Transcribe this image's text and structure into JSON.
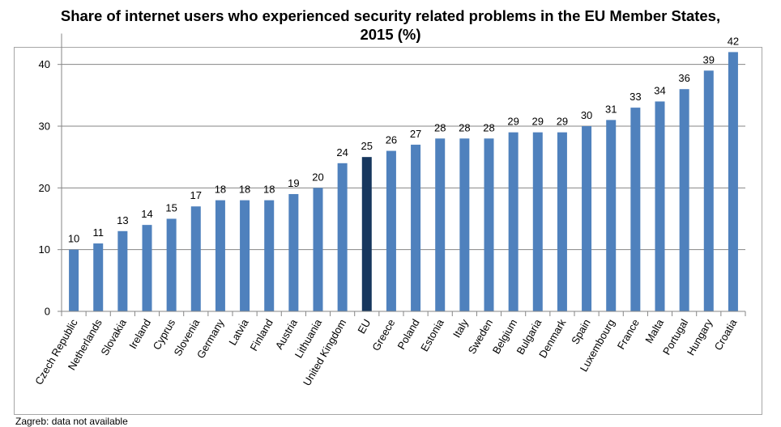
{
  "chart_data": {
    "type": "bar",
    "title_line1": "Share of internet users who experienced security related problems in the EU Member States,",
    "title_line2": "2015 (%)",
    "xlabel": "",
    "ylabel": "",
    "ylim": [
      0,
      45
    ],
    "yticks": [
      0,
      10,
      20,
      30,
      40
    ],
    "grid": true,
    "legend": "none",
    "categories": [
      "Czech Republic",
      "Netherlands",
      "Slovakia",
      "Ireland",
      "Cyprus",
      "Slovenia",
      "Germany",
      "Latvia",
      "Finland",
      "Austria",
      "Lithuania",
      "United Kingdom",
      "EU",
      "Greece",
      "Poland",
      "Estonia",
      "Italy",
      "Sweden",
      "Belgium",
      "Bulgaria",
      "Denmark",
      "Spain",
      "Luxembourg",
      "France",
      "Malta",
      "Portugal",
      "Hungary",
      "Croatia"
    ],
    "values": [
      10,
      11,
      13,
      14,
      15,
      17,
      18,
      18,
      18,
      19,
      20,
      24,
      25,
      26,
      27,
      28,
      28,
      28,
      29,
      29,
      29,
      30,
      31,
      33,
      34,
      36,
      39,
      42
    ],
    "highlight_category": "EU",
    "colors": {
      "bar": "#4f81bd",
      "highlight": "#17375e",
      "grid": "#868686",
      "axis": "#868686"
    }
  },
  "footnote": "Zagreb: data not available"
}
